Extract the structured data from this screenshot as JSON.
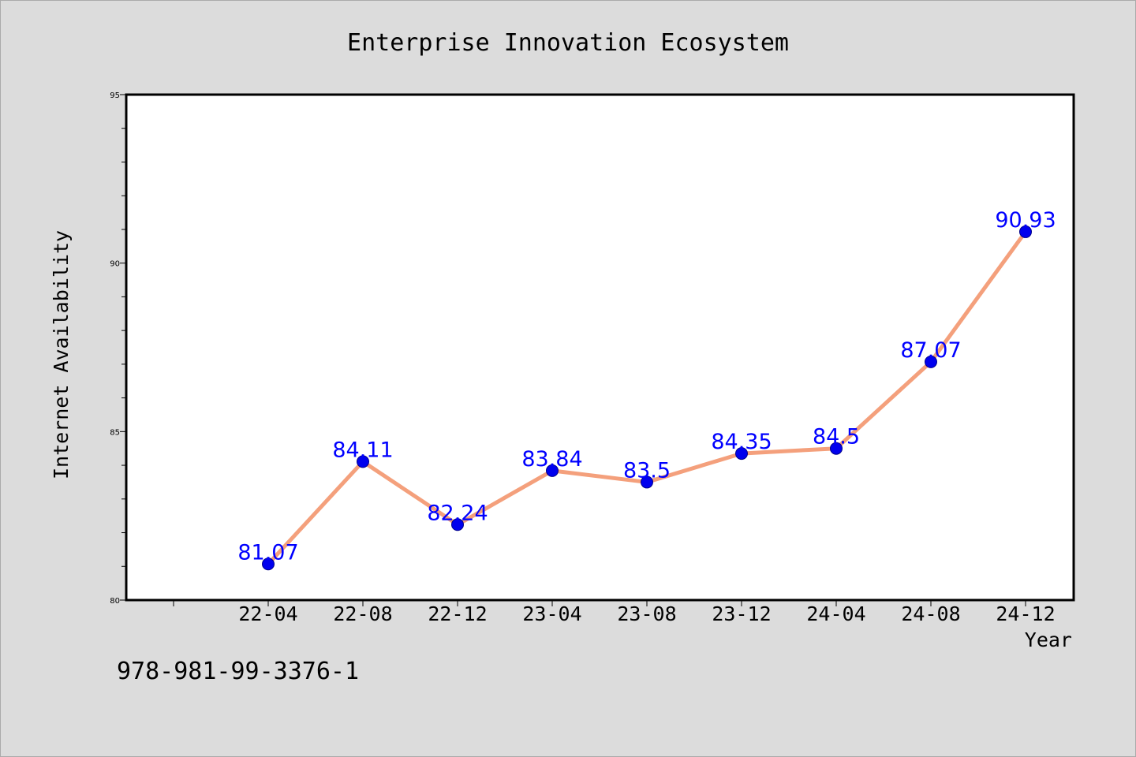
{
  "chart_data": {
    "type": "line",
    "title": "Enterprise Innovation Ecosystem",
    "xlabel": "Year",
    "ylabel": "Internet Availability",
    "categories": [
      "22-04",
      "22-08",
      "22-12",
      "23-04",
      "23-08",
      "23-12",
      "24-04",
      "24-08",
      "24-12"
    ],
    "series": [
      {
        "values": [
          81.07,
          84.11,
          82.24,
          83.84,
          83.5,
          84.35,
          84.5,
          87.07,
          90.93
        ],
        "labels": [
          "81.07",
          "84.11",
          "82.24",
          "83.84",
          "83.5",
          "84.35",
          "84.5",
          "87.07",
          "90.93"
        ]
      }
    ],
    "ylim": [
      80,
      95
    ],
    "yticks": [
      "80",
      "85",
      "90",
      "95"
    ],
    "grid": false,
    "colors": {
      "line": "#f4a07c",
      "marker": "#0000ee",
      "label": "#0000ff",
      "background": "#dcdcdc",
      "plot_bg": "#ffffff"
    }
  },
  "footer": {
    "isbn": "978-981-99-3376-1"
  }
}
